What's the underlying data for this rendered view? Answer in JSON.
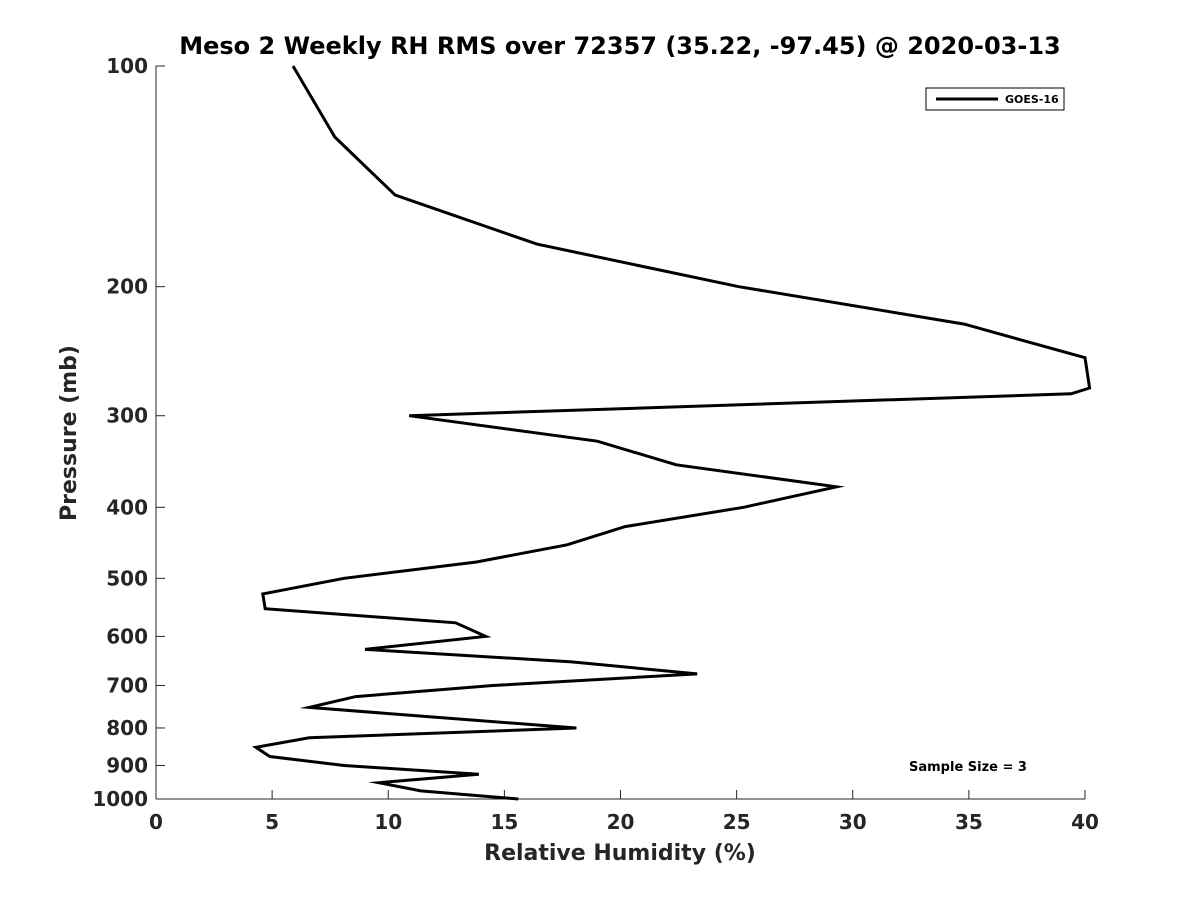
{
  "chart_data": {
    "type": "line",
    "title": "Meso 2 Weekly RH RMS over 72357 (35.22, -97.45) @ 2020-03-13",
    "xlabel": "Relative Humidity (%)",
    "ylabel": "Pressure (mb)",
    "xlim": [
      0,
      40
    ],
    "ylim": [
      100,
      1000
    ],
    "yscale": "log",
    "y_reversed": true,
    "grid": false,
    "x_ticks": [
      0,
      5,
      10,
      15,
      20,
      25,
      30,
      35,
      40
    ],
    "y_ticks": [
      100,
      200,
      300,
      400,
      500,
      600,
      700,
      800,
      900,
      1000
    ],
    "legend_position": "top-right",
    "series": [
      {
        "name": "GOES-16",
        "color": "#000000",
        "points": [
          {
            "p": 100,
            "rh": 5.9
          },
          {
            "p": 125,
            "rh": 7.7
          },
          {
            "p": 150,
            "rh": 10.3
          },
          {
            "p": 175,
            "rh": 16.4
          },
          {
            "p": 200,
            "rh": 25.1
          },
          {
            "p": 225,
            "rh": 34.8
          },
          {
            "p": 250,
            "rh": 40.0
          },
          {
            "p": 275,
            "rh": 40.2
          },
          {
            "p": 280,
            "rh": 39.4
          },
          {
            "p": 300,
            "rh": 10.9
          },
          {
            "p": 325,
            "rh": 19.0
          },
          {
            "p": 350,
            "rh": 22.4
          },
          {
            "p": 375,
            "rh": 29.3
          },
          {
            "p": 400,
            "rh": 25.3
          },
          {
            "p": 425,
            "rh": 20.2
          },
          {
            "p": 450,
            "rh": 17.7
          },
          {
            "p": 475,
            "rh": 13.8
          },
          {
            "p": 500,
            "rh": 8.1
          },
          {
            "p": 525,
            "rh": 4.6
          },
          {
            "p": 550,
            "rh": 4.7
          },
          {
            "p": 575,
            "rh": 12.9
          },
          {
            "p": 600,
            "rh": 14.2
          },
          {
            "p": 625,
            "rh": 9.0
          },
          {
            "p": 650,
            "rh": 17.9
          },
          {
            "p": 675,
            "rh": 23.3
          },
          {
            "p": 700,
            "rh": 14.5
          },
          {
            "p": 725,
            "rh": 8.6
          },
          {
            "p": 750,
            "rh": 6.6
          },
          {
            "p": 775,
            "rh": 12.4
          },
          {
            "p": 800,
            "rh": 18.1
          },
          {
            "p": 825,
            "rh": 6.6
          },
          {
            "p": 850,
            "rh": 4.3
          },
          {
            "p": 875,
            "rh": 4.9
          },
          {
            "p": 900,
            "rh": 8.1
          },
          {
            "p": 925,
            "rh": 13.9
          },
          {
            "p": 950,
            "rh": 9.6
          },
          {
            "p": 975,
            "rh": 11.4
          },
          {
            "p": 1000,
            "rh": 15.6
          }
        ]
      }
    ],
    "annotation": "Sample Size = 3"
  }
}
